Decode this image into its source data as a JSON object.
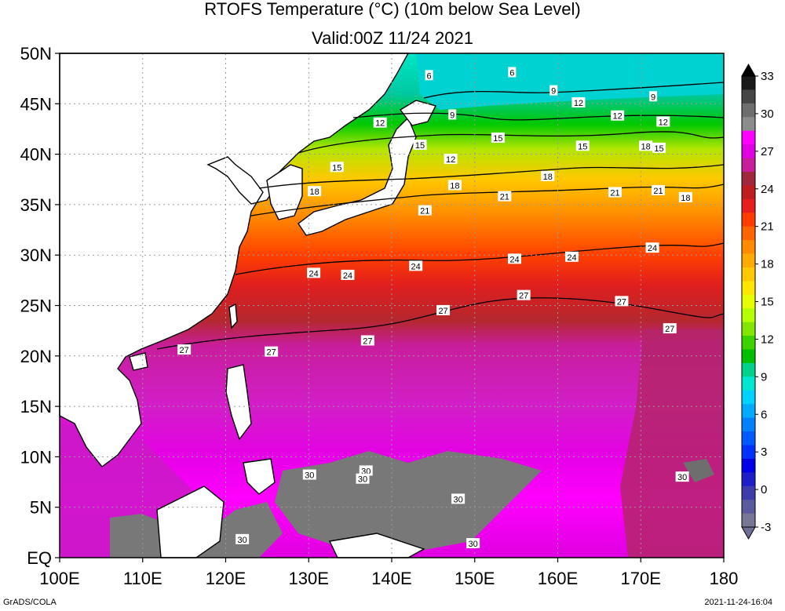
{
  "title": {
    "line1": "RTOFS Temperature (°C) (10m below Sea Level)",
    "line2": "Valid:00Z 11/24 2021"
  },
  "footer": {
    "left": "GrADS/COLA",
    "right": "2021-11-24-16:04"
  },
  "map": {
    "lon_range": [
      100,
      180
    ],
    "lat_range": [
      0,
      50
    ],
    "lon_ticks": [
      "100E",
      "110E",
      "120E",
      "130E",
      "140E",
      "150E",
      "160E",
      "170E",
      "180"
    ],
    "lat_ticks": [
      "50N",
      "45N",
      "40N",
      "35N",
      "30N",
      "25N",
      "20N",
      "15N",
      "10N",
      "5N",
      "EQ"
    ],
    "gridlines": "dotted",
    "land_color": "#ffffff",
    "coastline_color": "#000000"
  },
  "colorbar": {
    "labels": [
      "33",
      "30",
      "27",
      "24",
      "21",
      "18",
      "15",
      "12",
      "9",
      "6",
      "3",
      "0",
      "-3"
    ],
    "colors": [
      "#1a1a1a",
      "#464646",
      "#6e6e6e",
      "#8c8c8c",
      "#ff00ff",
      "#e000e0",
      "#c81e9c",
      "#a0283c",
      "#be1e1e",
      "#e61e1e",
      "#ff3c00",
      "#ff6400",
      "#ff8c00",
      "#ffaa00",
      "#ffc800",
      "#ffe600",
      "#e6ff00",
      "#b4ff00",
      "#82e600",
      "#3cd200",
      "#00be00",
      "#00d28c",
      "#00e6d2",
      "#00d2ff",
      "#00aaff",
      "#0082ff",
      "#005aff",
      "#0032ff",
      "#0000e6",
      "#1e1ec8",
      "#3c3caa",
      "#5a5a9e",
      "#787896"
    ],
    "top_arrow_color": "#000000",
    "bottom_arrow_color": "#6e6e96"
  },
  "contour_labels": [
    {
      "text": "6",
      "lon": 144.5,
      "lat": 47.8
    },
    {
      "text": "6",
      "lon": 154.5,
      "lat": 48.1
    },
    {
      "text": "9",
      "lon": 159.5,
      "lat": 46.3
    },
    {
      "text": "9",
      "lon": 171.5,
      "lat": 45.7
    },
    {
      "text": "12",
      "lon": 162.5,
      "lat": 45.1
    },
    {
      "text": "9",
      "lon": 147.3,
      "lat": 43.9
    },
    {
      "text": "12",
      "lon": 167.2,
      "lat": 43.8
    },
    {
      "text": "12",
      "lon": 172.7,
      "lat": 43.2
    },
    {
      "text": "12",
      "lon": 138.6,
      "lat": 43.1
    },
    {
      "text": "15",
      "lon": 152.8,
      "lat": 41.6
    },
    {
      "text": "15",
      "lon": 143.4,
      "lat": 40.9
    },
    {
      "text": "15",
      "lon": 163.0,
      "lat": 40.8
    },
    {
      "text": "18",
      "lon": 170.6,
      "lat": 40.8
    },
    {
      "text": "15",
      "lon": 172.2,
      "lat": 40.6
    },
    {
      "text": "12",
      "lon": 147.1,
      "lat": 39.5
    },
    {
      "text": "15",
      "lon": 133.4,
      "lat": 38.7
    },
    {
      "text": "18",
      "lon": 158.8,
      "lat": 37.8
    },
    {
      "text": "18",
      "lon": 147.6,
      "lat": 36.9
    },
    {
      "text": "18",
      "lon": 130.7,
      "lat": 36.3
    },
    {
      "text": "21",
      "lon": 153.6,
      "lat": 35.8
    },
    {
      "text": "21",
      "lon": 166.9,
      "lat": 36.2
    },
    {
      "text": "21",
      "lon": 172.1,
      "lat": 36.4
    },
    {
      "text": "18",
      "lon": 175.4,
      "lat": 35.7
    },
    {
      "text": "21",
      "lon": 144.0,
      "lat": 34.4
    },
    {
      "text": "24",
      "lon": 171.4,
      "lat": 30.7
    },
    {
      "text": "24",
      "lon": 161.7,
      "lat": 29.8
    },
    {
      "text": "24",
      "lon": 154.8,
      "lat": 29.6
    },
    {
      "text": "24",
      "lon": 142.9,
      "lat": 28.9
    },
    {
      "text": "24",
      "lon": 130.6,
      "lat": 28.2
    },
    {
      "text": "24",
      "lon": 134.7,
      "lat": 28.0
    },
    {
      "text": "27",
      "lon": 155.9,
      "lat": 26.0
    },
    {
      "text": "27",
      "lon": 167.7,
      "lat": 25.4
    },
    {
      "text": "27",
      "lon": 146.2,
      "lat": 24.5
    },
    {
      "text": "27",
      "lon": 173.5,
      "lat": 22.7
    },
    {
      "text": "27",
      "lon": 137.1,
      "lat": 21.5
    },
    {
      "text": "27",
      "lon": 115.0,
      "lat": 20.6
    },
    {
      "text": "27",
      "lon": 125.5,
      "lat": 20.4
    },
    {
      "text": "30",
      "lon": 136.9,
      "lat": 8.6
    },
    {
      "text": "30",
      "lon": 130.1,
      "lat": 8.2
    },
    {
      "text": "30",
      "lon": 136.5,
      "lat": 7.8
    },
    {
      "text": "30",
      "lon": 175.0,
      "lat": 8.0
    },
    {
      "text": "30",
      "lon": 148.0,
      "lat": 5.8
    },
    {
      "text": "30",
      "lon": 122.0,
      "lat": 1.8
    },
    {
      "text": "30",
      "lon": 149.8,
      "lat": 1.4
    }
  ]
}
